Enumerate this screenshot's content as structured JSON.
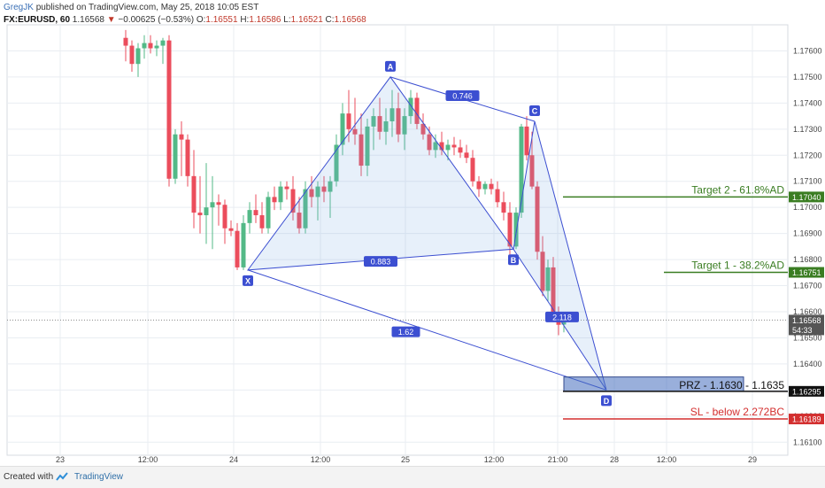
{
  "header": {
    "author": "GregJK",
    "published_text": "published on TradingView.com, May 25, 2018 10:05 EST",
    "symbol": "FX:EURUSD, 60",
    "last": "1.16568",
    "change": "−0.00625 (−0.53%)",
    "open_label": "O:",
    "open": "1.16551",
    "high_label": "H:",
    "high": "1.16586",
    "low_label": "L:",
    "low": "1.16521",
    "close_label": "C:",
    "close": "1.16568"
  },
  "footer": {
    "created_with": "Created with",
    "brand": "TradingView"
  },
  "chart_data": {
    "type": "candlestick",
    "ylim": [
      1.1605,
      1.177
    ],
    "y_ticks": [
      "1.17600",
      "1.17500",
      "1.17400",
      "1.17300",
      "1.17200",
      "1.17100",
      "1.17000",
      "1.16900",
      "1.16800",
      "1.16700",
      "1.16600",
      "1.16500",
      "1.16400",
      "1.16300",
      "1.16200",
      "1.16100"
    ],
    "x_ticks": [
      "23",
      "12:00",
      "24",
      "12:00",
      "25",
      "12:00",
      "21:00",
      "28",
      "12:00",
      "29"
    ],
    "price_badges": [
      {
        "value": "1.17040",
        "color": "#3a7d22"
      },
      {
        "value": "1.16751",
        "color": "#3a7d22"
      },
      {
        "value": "1.16568",
        "color": "#555555"
      },
      {
        "value": "54:33",
        "color": "#555555"
      },
      {
        "value": "1.16295",
        "color": "#111111"
      },
      {
        "value": "1.16189",
        "color": "#d32f2f"
      }
    ],
    "harmonic_points": [
      {
        "label": "X",
        "price": 1.1676
      },
      {
        "label": "A",
        "price": 1.175
      },
      {
        "label": "B",
        "price": 1.1684
      },
      {
        "label": "C",
        "price": 1.1733
      },
      {
        "label": "D",
        "price": 1.163
      }
    ],
    "ratios": [
      "0.746",
      "0.883",
      "1.62",
      "2.118"
    ],
    "levels": [
      {
        "label": "Target 2 - 61.8%AD",
        "price": 1.1704,
        "color": "#3a7d22"
      },
      {
        "label": "Target 1 - 38.2%AD",
        "price": 1.16751,
        "color": "#3a7d22"
      },
      {
        "label": "PRZ - 1.1630 - 1.1635",
        "price": 1.16295,
        "color": "#111111"
      },
      {
        "label": "SL - below 2.272BC",
        "price": 1.16189,
        "color": "#d32f2f"
      }
    ],
    "colors": {
      "up": "#53b987",
      "down": "#eb4d5c",
      "pattern": "#3c4fd1",
      "grid": "#e9edf2"
    }
  }
}
